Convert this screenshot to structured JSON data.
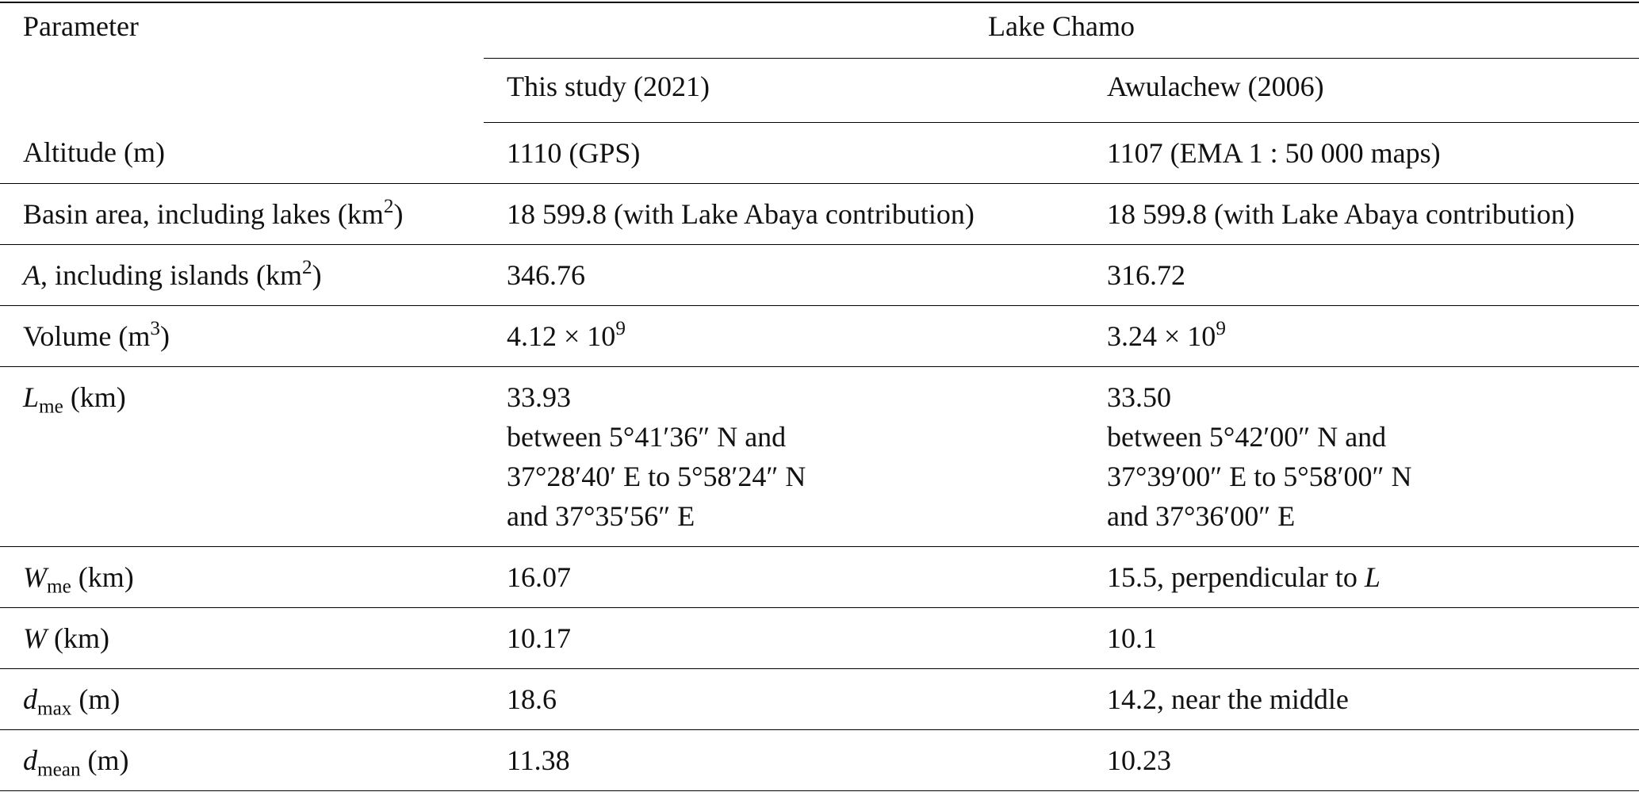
{
  "header": {
    "parameter": "Parameter",
    "group": "Lake Chamo",
    "columns": [
      "This study (2021)",
      "Awulachew (2006)"
    ]
  },
  "table": {
    "rows": [
      {
        "cells": [
          [
            [
              {
                "text": "Altitude (m)"
              }
            ]
          ],
          [
            [
              {
                "text": "1110 (GPS)"
              }
            ]
          ],
          [
            [
              {
                "text": "1107 (EMA 1 : 50 000 maps)"
              }
            ]
          ]
        ]
      },
      {
        "cells": [
          [
            [
              {
                "text": "Basin area, including lakes (km"
              },
              {
                "text": "2",
                "style": "sup"
              },
              {
                "text": ")"
              }
            ]
          ],
          [
            [
              {
                "text": "18 599.8 (with Lake Abaya contribution)"
              }
            ]
          ],
          [
            [
              {
                "text": "18 599.8 (with Lake Abaya contribution)"
              }
            ]
          ]
        ]
      },
      {
        "cells": [
          [
            [
              {
                "text": "A",
                "style": "italic"
              },
              {
                "text": ", including islands (km"
              },
              {
                "text": "2",
                "style": "sup"
              },
              {
                "text": ")"
              }
            ]
          ],
          [
            [
              {
                "text": "346.76"
              }
            ]
          ],
          [
            [
              {
                "text": "316.72"
              }
            ]
          ]
        ]
      },
      {
        "cells": [
          [
            [
              {
                "text": "Volume (m"
              },
              {
                "text": "3",
                "style": "sup"
              },
              {
                "text": ")"
              }
            ]
          ],
          [
            [
              {
                "text": "4.12 × 10"
              },
              {
                "text": "9",
                "style": "sup"
              }
            ]
          ],
          [
            [
              {
                "text": "3.24 × 10"
              },
              {
                "text": "9",
                "style": "sup"
              }
            ]
          ]
        ]
      },
      {
        "cells": [
          [
            [
              {
                "text": "L",
                "style": "italic"
              },
              {
                "text": "me",
                "style": "sub"
              },
              {
                "text": " (km)"
              }
            ]
          ],
          [
            [
              {
                "text": "33.93"
              }
            ],
            [
              {
                "text": "between 5°41′36″ N and"
              }
            ],
            [
              {
                "text": "37°28′40′ E to 5°58′24″ N"
              }
            ],
            [
              {
                "text": "and 37°35′56″ E"
              }
            ]
          ],
          [
            [
              {
                "text": "33.50"
              }
            ],
            [
              {
                "text": "between 5°42′00″ N and"
              }
            ],
            [
              {
                "text": "37°39′00″ E to 5°58′00″ N"
              }
            ],
            [
              {
                "text": "and 37°36′00″ E"
              }
            ]
          ]
        ]
      },
      {
        "cells": [
          [
            [
              {
                "text": "W",
                "style": "italic"
              },
              {
                "text": "me",
                "style": "sub"
              },
              {
                "text": " (km)"
              }
            ]
          ],
          [
            [
              {
                "text": "16.07"
              }
            ]
          ],
          [
            [
              {
                "text": "15.5, perpendicular to "
              },
              {
                "text": "L",
                "style": "italic"
              }
            ]
          ]
        ]
      },
      {
        "cells": [
          [
            [
              {
                "text": "W",
                "style": "italic"
              },
              {
                "text": " (km)"
              }
            ]
          ],
          [
            [
              {
                "text": "10.17"
              }
            ]
          ],
          [
            [
              {
                "text": "10.1"
              }
            ]
          ]
        ]
      },
      {
        "cells": [
          [
            [
              {
                "text": "d",
                "style": "italic"
              },
              {
                "text": "max",
                "style": "sub"
              },
              {
                "text": " (m)"
              }
            ]
          ],
          [
            [
              {
                "text": "18.6"
              }
            ]
          ],
          [
            [
              {
                "text": "14.2, near the middle"
              }
            ]
          ]
        ]
      },
      {
        "cells": [
          [
            [
              {
                "text": "d",
                "style": "italic"
              },
              {
                "text": "mean",
                "style": "sub"
              },
              {
                "text": " (m)"
              }
            ]
          ],
          [
            [
              {
                "text": "11.38"
              }
            ]
          ],
          [
            [
              {
                "text": "10.23"
              }
            ]
          ]
        ]
      }
    ]
  }
}
